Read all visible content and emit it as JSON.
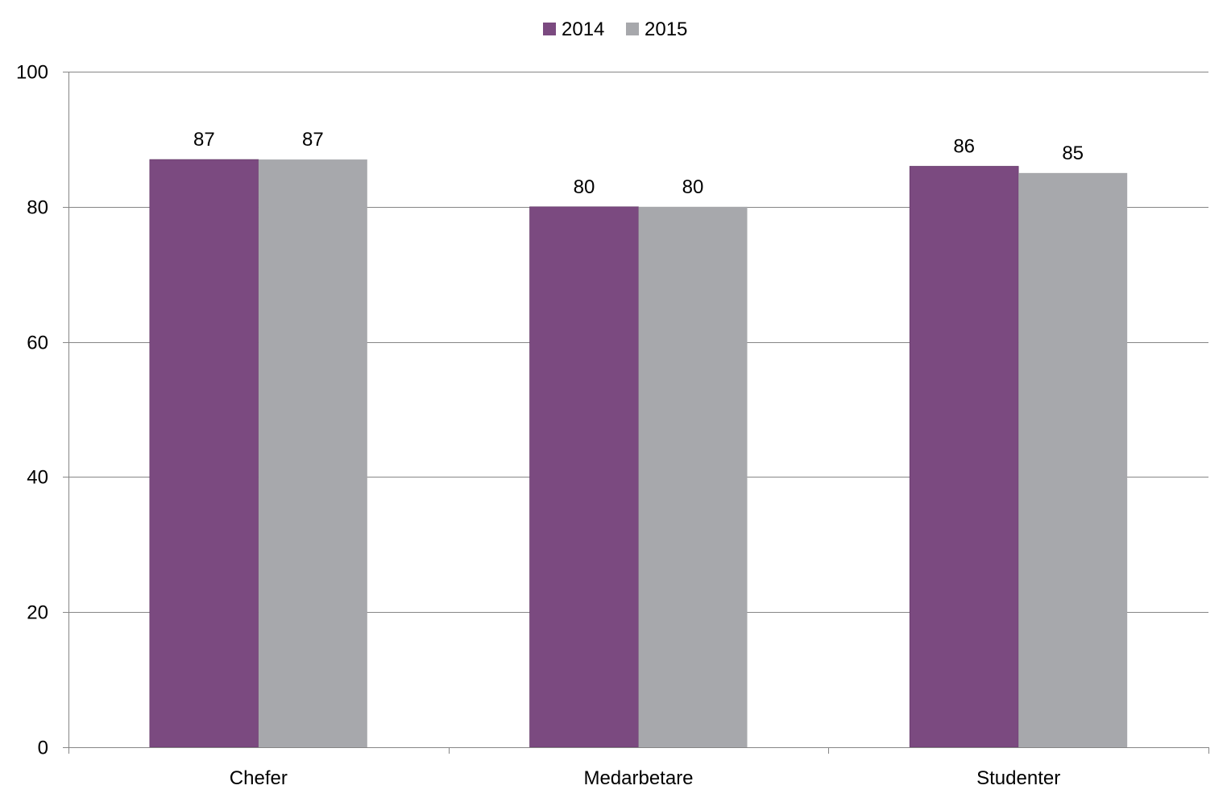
{
  "chart_data": {
    "type": "bar",
    "title": "",
    "xlabel": "",
    "ylabel": "",
    "categories": [
      "Chefer",
      "Medarbetare",
      "Studenter"
    ],
    "series": [
      {
        "name": "2014",
        "values": [
          87,
          80,
          86
        ],
        "color": "#7B4A80"
      },
      {
        "name": "2015",
        "values": [
          87,
          80,
          85
        ],
        "color": "#A7A8AC"
      }
    ],
    "ylim": [
      0,
      100
    ],
    "yticks": [
      0,
      20,
      40,
      60,
      80,
      100
    ],
    "grid": true,
    "legend_position": "top-center",
    "data_labels": true
  }
}
